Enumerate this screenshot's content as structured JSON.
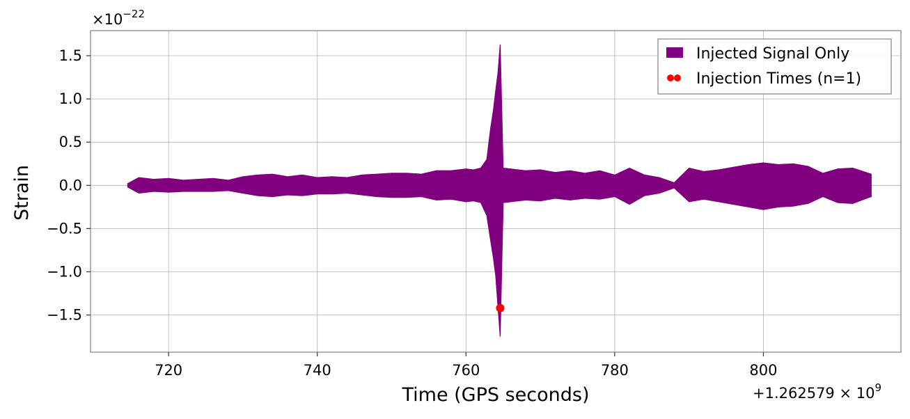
{
  "chart_data": {
    "type": "line",
    "title": "",
    "xlabel": "Time (GPS seconds)",
    "ylabel": "Strain",
    "y_multiplier_label": "×10",
    "y_multiplier_exp": "−22",
    "x_offset_label": "+1.262579 × 10",
    "x_offset_exp": "9",
    "xlim": [
      709.5,
      818.5
    ],
    "ylim": [
      -1.93,
      1.79
    ],
    "x_ticks": [
      720,
      740,
      760,
      780,
      800
    ],
    "x_tick_labels": [
      "720",
      "740",
      "760",
      "780",
      "800"
    ],
    "y_ticks": [
      1.5,
      1.0,
      0.5,
      0.0,
      -0.5,
      -1.0,
      -1.5
    ],
    "y_tick_labels": [
      "1.5",
      "1.0",
      "0.5",
      "0.0",
      "−0.5",
      "−1.0",
      "−1.5"
    ],
    "grid": true,
    "legend_position": "top-right",
    "series": [
      {
        "name": "Injected Signal Only",
        "kind": "envelope",
        "color": "#800080",
        "x_start": 714.5,
        "x_end": 814.5,
        "envelope": {
          "x": [
            714.5,
            716,
            718,
            720,
            722,
            724,
            726,
            728,
            730,
            732,
            734,
            736,
            738,
            740,
            742,
            744,
            746,
            748,
            750,
            752,
            754,
            756,
            758,
            760,
            761,
            762,
            762.8,
            763.3,
            763.7,
            764.0,
            764.3,
            764.6,
            765,
            766,
            768,
            770,
            772,
            774,
            776,
            778,
            780,
            782,
            784,
            786,
            788,
            790,
            792,
            794,
            796,
            798,
            800,
            802,
            804,
            806,
            808,
            810,
            812,
            814.5
          ],
          "upper": [
            0.02,
            0.09,
            0.07,
            0.08,
            0.06,
            0.07,
            0.08,
            0.06,
            0.1,
            0.12,
            0.13,
            0.1,
            0.12,
            0.09,
            0.1,
            0.09,
            0.12,
            0.13,
            0.14,
            0.14,
            0.13,
            0.17,
            0.17,
            0.19,
            0.18,
            0.2,
            0.3,
            0.65,
            0.88,
            1.1,
            1.3,
            1.63,
            0.2,
            0.19,
            0.17,
            0.18,
            0.15,
            0.17,
            0.14,
            0.17,
            0.12,
            0.2,
            0.12,
            0.09,
            0.03,
            0.2,
            0.16,
            0.18,
            0.21,
            0.24,
            0.26,
            0.24,
            0.25,
            0.22,
            0.14,
            0.19,
            0.2,
            0.13
          ],
          "lower": [
            -0.02,
            -0.09,
            -0.07,
            -0.08,
            -0.07,
            -0.07,
            -0.07,
            -0.06,
            -0.09,
            -0.12,
            -0.13,
            -0.11,
            -0.12,
            -0.1,
            -0.1,
            -0.09,
            -0.11,
            -0.13,
            -0.14,
            -0.14,
            -0.13,
            -0.17,
            -0.16,
            -0.19,
            -0.18,
            -0.2,
            -0.35,
            -0.63,
            -0.85,
            -1.05,
            -1.4,
            -1.75,
            -0.2,
            -0.19,
            -0.17,
            -0.18,
            -0.15,
            -0.17,
            -0.15,
            -0.16,
            -0.13,
            -0.22,
            -0.12,
            -0.09,
            -0.03,
            -0.19,
            -0.16,
            -0.19,
            -0.22,
            -0.25,
            -0.28,
            -0.25,
            -0.24,
            -0.21,
            -0.13,
            -0.2,
            -0.21,
            -0.13
          ]
        }
      },
      {
        "name": "Injection Times (n=1)",
        "kind": "scatter",
        "color": "#ff0000",
        "points": [
          {
            "x": 764.6,
            "y": -1.42
          }
        ]
      }
    ]
  }
}
